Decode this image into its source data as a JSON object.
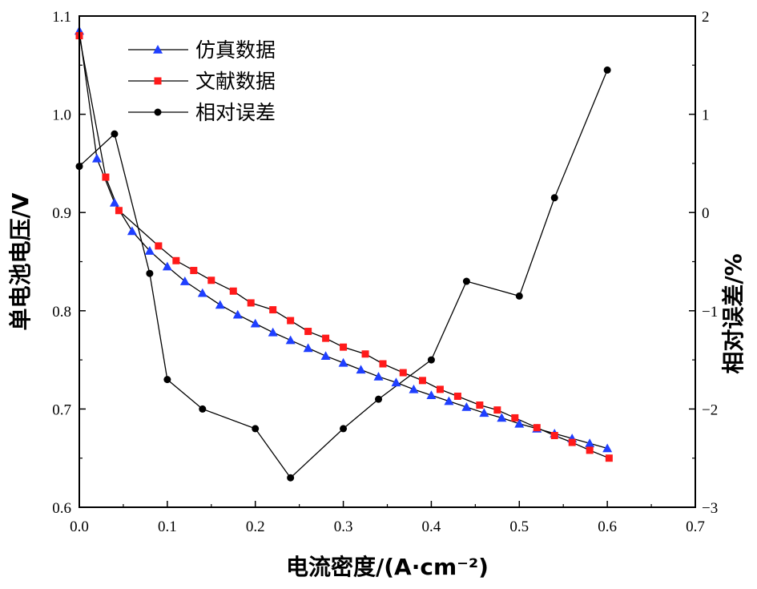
{
  "chart_data": {
    "type": "line",
    "xlabel": "电流密度/(A·cm⁻²)",
    "ylabel": "单电池电压/V",
    "y2label": "相对误差/%",
    "xlim": [
      0,
      0.7
    ],
    "ylim": [
      0.6,
      1.1
    ],
    "y2lim": [
      -3,
      2
    ],
    "x_ticks": [
      "0.0",
      "0.1",
      "0.2",
      "0.3",
      "0.4",
      "0.5",
      "0.6",
      "0.7"
    ],
    "y_ticks": [
      "0.6",
      "0.7",
      "0.8",
      "0.9",
      "1.0",
      "1.1"
    ],
    "y2_ticks": [
      "−3",
      "−2",
      "−1",
      "0",
      "1",
      "2"
    ],
    "grid": false,
    "legend_position": "top-left",
    "series": [
      {
        "name": "仿真数据",
        "axis": "left",
        "marker": "triangle",
        "color": "#1f3fff",
        "x": [
          0.0,
          0.02,
          0.04,
          0.06,
          0.08,
          0.1,
          0.12,
          0.14,
          0.16,
          0.18,
          0.2,
          0.22,
          0.24,
          0.26,
          0.28,
          0.3,
          0.32,
          0.34,
          0.36,
          0.38,
          0.4,
          0.42,
          0.44,
          0.46,
          0.48,
          0.5,
          0.52,
          0.54,
          0.56,
          0.58,
          0.6
        ],
        "y": [
          1.085,
          0.955,
          0.91,
          0.881,
          0.861,
          0.845,
          0.83,
          0.818,
          0.806,
          0.796,
          0.787,
          0.778,
          0.77,
          0.762,
          0.754,
          0.747,
          0.74,
          0.733,
          0.727,
          0.72,
          0.714,
          0.708,
          0.702,
          0.696,
          0.691,
          0.685,
          0.68,
          0.675,
          0.67,
          0.665,
          0.66
        ]
      },
      {
        "name": "文献数据",
        "axis": "left",
        "marker": "square",
        "color": "#ff1a1a",
        "x": [
          0.0,
          0.03,
          0.045,
          0.09,
          0.11,
          0.13,
          0.15,
          0.175,
          0.195,
          0.22,
          0.24,
          0.26,
          0.28,
          0.3,
          0.325,
          0.345,
          0.368,
          0.39,
          0.41,
          0.43,
          0.455,
          0.475,
          0.495,
          0.52,
          0.54,
          0.56,
          0.58,
          0.602
        ],
        "y": [
          1.08,
          0.936,
          0.902,
          0.866,
          0.851,
          0.841,
          0.831,
          0.82,
          0.808,
          0.801,
          0.79,
          0.779,
          0.772,
          0.763,
          0.756,
          0.746,
          0.737,
          0.729,
          0.72,
          0.713,
          0.704,
          0.699,
          0.691,
          0.681,
          0.673,
          0.666,
          0.658,
          0.65
        ]
      },
      {
        "name": "相对误差",
        "axis": "right",
        "marker": "circle",
        "color": "#000000",
        "x": [
          0.0,
          0.04,
          0.08,
          0.1,
          0.14,
          0.2,
          0.24,
          0.3,
          0.34,
          0.4,
          0.44,
          0.5,
          0.54,
          0.6
        ],
        "y": [
          0.47,
          0.8,
          -0.62,
          -1.7,
          -2.0,
          -2.2,
          -2.7,
          -2.2,
          -1.9,
          -1.5,
          -0.7,
          -0.85,
          0.15,
          1.45
        ]
      }
    ]
  }
}
